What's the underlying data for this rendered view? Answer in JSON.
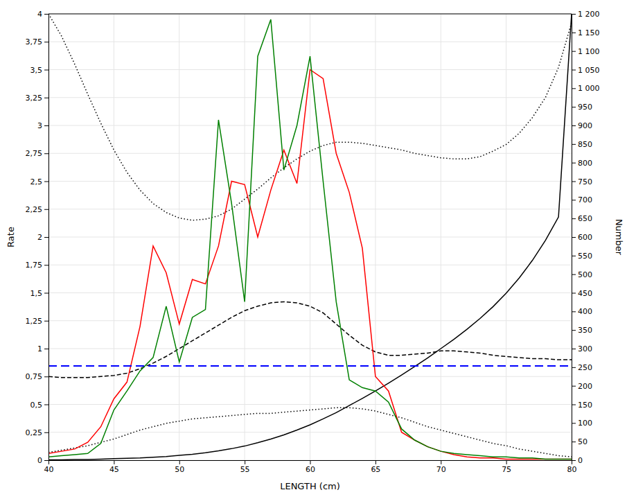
{
  "chart_data": {
    "type": "line",
    "xlabel": "LENGTH (cm)",
    "ylabel": "Rate",
    "y2label": "Number",
    "xlim": [
      40,
      80
    ],
    "ylim": [
      0,
      4
    ],
    "y2lim": [
      0,
      1200
    ],
    "xticks": [
      40,
      45,
      50,
      55,
      60,
      65,
      70,
      75,
      80
    ],
    "yticks": [
      0,
      {
        "value": 0.25,
        "label": "0,25"
      },
      {
        "value": 0.5,
        "label": "0,5"
      },
      {
        "value": 0.75,
        "label": "0,75"
      },
      1,
      {
        "value": 1.25,
        "label": "1,25"
      },
      {
        "value": 1.5,
        "label": "1,5"
      },
      {
        "value": 1.75,
        "label": "1,75"
      },
      2,
      {
        "value": 2.25,
        "label": "2,25"
      },
      {
        "value": 2.5,
        "label": "2,5"
      },
      {
        "value": 2.75,
        "label": "2,75"
      },
      3,
      {
        "value": 3.25,
        "label": "3,25"
      },
      {
        "value": 3.5,
        "label": "3,5"
      },
      {
        "value": 3.75,
        "label": "3,75"
      },
      4
    ],
    "y2ticks": [
      0,
      50,
      100,
      150,
      200,
      250,
      300,
      350,
      400,
      450,
      500,
      550,
      600,
      650,
      700,
      750,
      800,
      850,
      900,
      950,
      {
        "value": 1000,
        "label": "1 000"
      },
      {
        "value": 1050,
        "label": "1 050"
      },
      {
        "value": 1100,
        "label": "1 100"
      },
      {
        "value": 1150,
        "label": "1 150"
      },
      {
        "value": 1200,
        "label": "1 200"
      }
    ],
    "grid": true,
    "x": [
      40,
      41,
      42,
      43,
      44,
      45,
      46,
      47,
      48,
      49,
      50,
      51,
      52,
      53,
      54,
      55,
      56,
      57,
      58,
      59,
      60,
      61,
      62,
      63,
      64,
      65,
      66,
      67,
      68,
      69,
      70,
      71,
      72,
      73,
      74,
      75,
      76,
      77,
      78,
      79,
      80
    ],
    "series": [
      {
        "axis": "y2",
        "color": "black",
        "line_style": "solid",
        "values": [
          1,
          1,
          2,
          2,
          3,
          4,
          5,
          6,
          8,
          10,
          13,
          16,
          20,
          25,
          31,
          38,
          47,
          57,
          68,
          81,
          95,
          111,
          128,
          147,
          166,
          186,
          207,
          229,
          252,
          275,
          300,
          325,
          352,
          381,
          413,
          449,
          490,
          537,
          591,
          654,
          1200
        ]
      },
      {
        "color": "black",
        "line_style": "dotted",
        "values": [
          4.0,
          3.8,
          3.55,
          3.28,
          3.02,
          2.78,
          2.58,
          2.42,
          2.3,
          2.22,
          2.17,
          2.15,
          2.16,
          2.19,
          2.25,
          2.34,
          2.43,
          2.53,
          2.62,
          2.7,
          2.77,
          2.82,
          2.85,
          2.85,
          2.84,
          2.82,
          2.8,
          2.78,
          2.75,
          2.73,
          2.71,
          2.7,
          2.7,
          2.72,
          2.77,
          2.83,
          2.93,
          3.07,
          3.25,
          3.52,
          3.92
        ]
      },
      {
        "color": "black",
        "line_style": "dotted",
        "values": [
          0.07,
          0.09,
          0.11,
          0.13,
          0.16,
          0.19,
          0.23,
          0.27,
          0.3,
          0.33,
          0.35,
          0.37,
          0.38,
          0.39,
          0.4,
          0.41,
          0.42,
          0.42,
          0.43,
          0.44,
          0.45,
          0.46,
          0.47,
          0.47,
          0.46,
          0.44,
          0.41,
          0.38,
          0.34,
          0.3,
          0.27,
          0.24,
          0.21,
          0.18,
          0.15,
          0.13,
          0.1,
          0.08,
          0.06,
          0.04,
          0.03
        ]
      },
      {
        "color": "black",
        "line_style": "dashed",
        "values": [
          0.75,
          0.74,
          0.74,
          0.74,
          0.75,
          0.76,
          0.78,
          0.82,
          0.87,
          0.93,
          1.0,
          1.07,
          1.14,
          1.21,
          1.28,
          1.34,
          1.38,
          1.41,
          1.42,
          1.41,
          1.38,
          1.32,
          1.22,
          1.12,
          1.03,
          0.97,
          0.94,
          0.94,
          0.95,
          0.96,
          0.98,
          0.98,
          0.97,
          0.96,
          0.94,
          0.93,
          0.92,
          0.91,
          0.91,
          0.9,
          0.9
        ]
      },
      {
        "color": "red",
        "line_style": "solid",
        "values": [
          0.06,
          0.08,
          0.1,
          0.16,
          0.3,
          0.55,
          0.7,
          1.2,
          1.92,
          1.68,
          1.22,
          1.62,
          1.58,
          1.92,
          2.5,
          2.47,
          2.0,
          2.42,
          2.78,
          2.48,
          3.5,
          3.42,
          2.75,
          2.4,
          1.9,
          0.75,
          0.62,
          0.25,
          0.18,
          0.12,
          0.08,
          0.05,
          0.03,
          0.02,
          0.02,
          0.01,
          0.01,
          0.01,
          0.01,
          0.01,
          0.01
        ]
      },
      {
        "color": "green",
        "line_style": "solid",
        "values": [
          0.03,
          0.04,
          0.05,
          0.06,
          0.15,
          0.45,
          0.62,
          0.8,
          0.92,
          1.38,
          0.88,
          1.28,
          1.35,
          3.05,
          2.3,
          1.42,
          3.62,
          3.95,
          2.6,
          3.0,
          3.62,
          2.5,
          1.42,
          0.72,
          0.65,
          0.62,
          0.52,
          0.28,
          0.18,
          0.12,
          0.08,
          0.06,
          0.05,
          0.04,
          0.03,
          0.03,
          0.02,
          0.02,
          0.01,
          0.01,
          0.01
        ]
      }
    ],
    "hline": {
      "value": 0.845,
      "color": "blue",
      "line_style": "dashed"
    }
  }
}
